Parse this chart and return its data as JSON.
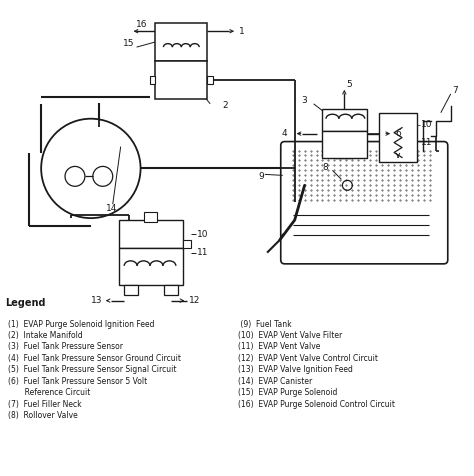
{
  "bg_color": "#ffffff",
  "line_color": "#1a1a1a",
  "figsize": [
    4.74,
    4.76
  ],
  "dpi": 100,
  "legend_title": "Legend",
  "legend_left": [
    "(1)  EVAP Purge Solenoid Ignition Feed",
    "(2)  Intake Manifold",
    "(3)  Fuel Tank Pressure Sensor",
    "(4)  Fuel Tank Pressure Sensor Ground Circuit",
    "(5)  Fuel Tank Pressure Sensor Signal Circuit",
    "(6)  Fuel Tank Pressure Sensor 5 Volt",
    "       Reference Circuit",
    "(7)  Fuel Filler Neck",
    "(8)  Rollover Valve"
  ],
  "legend_right": [
    " (9)  Fuel Tank",
    "(10)  EVAP Vent Valve Filter",
    "(11)  EVAP Vent Valve",
    "(12)  EVAP Vent Valve Control Circuit",
    "(13)  EVAP Valve Ignition Feed",
    "(14)  EVAP Canister",
    "(15)  EVAP Purge Solenoid",
    "(16)  EVAP Purge Solenoid Control Circuit"
  ]
}
